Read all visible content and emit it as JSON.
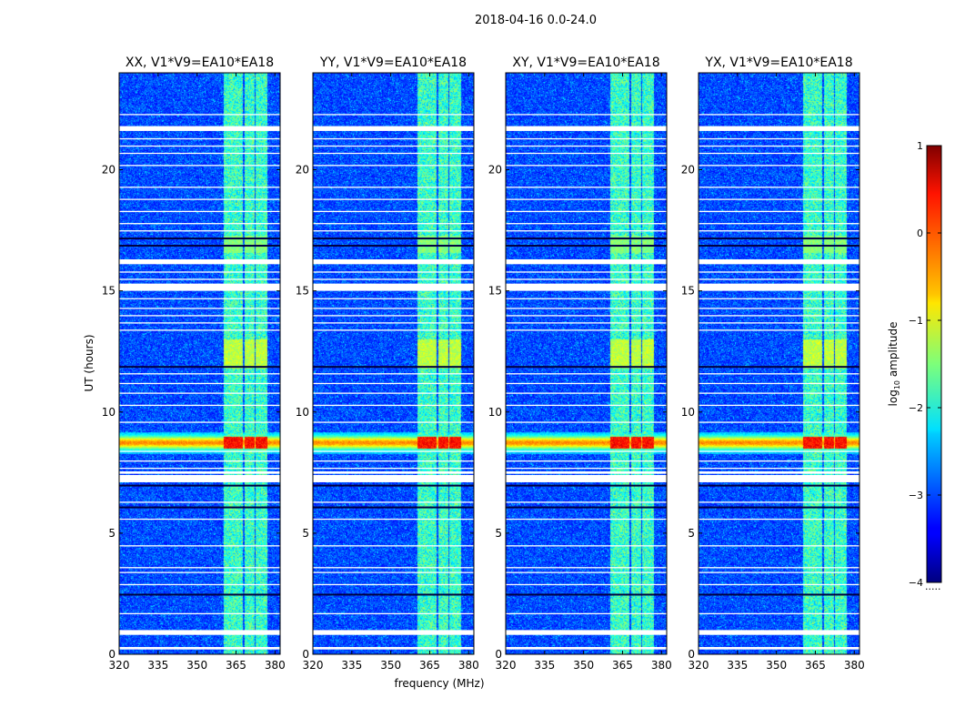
{
  "chart_data": {
    "type": "heatmap",
    "title": "2018-04-16 0.0-24.0",
    "xlabel": "frequency (MHz)",
    "ylabel": "UT (hours)",
    "xlim": [
      320,
      382
    ],
    "ylim": [
      0,
      24
    ],
    "xticks": [
      320,
      335,
      350,
      365,
      380
    ],
    "yticks": [
      0,
      5,
      10,
      15,
      20
    ],
    "panels": [
      {
        "title": "XX, V1*V9=EA10*EA18"
      },
      {
        "title": "YY, V1*V9=EA10*EA18"
      },
      {
        "title": "XY, V1*V9=EA10*EA18"
      },
      {
        "title": "YX, V1*V9=EA10*EA18"
      }
    ],
    "colorbar": {
      "label_prefix": "log",
      "label_sub": "10",
      "label_suffix": " amplitude",
      "range": [
        -4,
        1
      ],
      "ticks": [
        1,
        0,
        -1,
        -2,
        -3,
        -4
      ],
      "tick_labels": [
        "1",
        "0",
        "−1",
        "−2",
        "−3",
        "−4"
      ],
      "colormap": "jet",
      "under_mark": "....."
    },
    "rfi_band_mhz": [
      [
        360,
        364
      ],
      [
        364,
        367.5
      ],
      [
        368,
        372
      ],
      [
        372.5,
        377
      ]
    ],
    "bright_burst_ut": [
      8.3,
      9.2
    ],
    "flagged_gaps_ut": [
      [
        0.2,
        0.3
      ],
      [
        0.8,
        1.0
      ],
      [
        7.1,
        7.4
      ],
      [
        7.45,
        7.55
      ],
      [
        15.0,
        15.3
      ],
      [
        16.1,
        16.3
      ],
      [
        21.6,
        21.8
      ]
    ],
    "colors": {
      "background": "#00008f",
      "flag": "#ffffff"
    }
  }
}
